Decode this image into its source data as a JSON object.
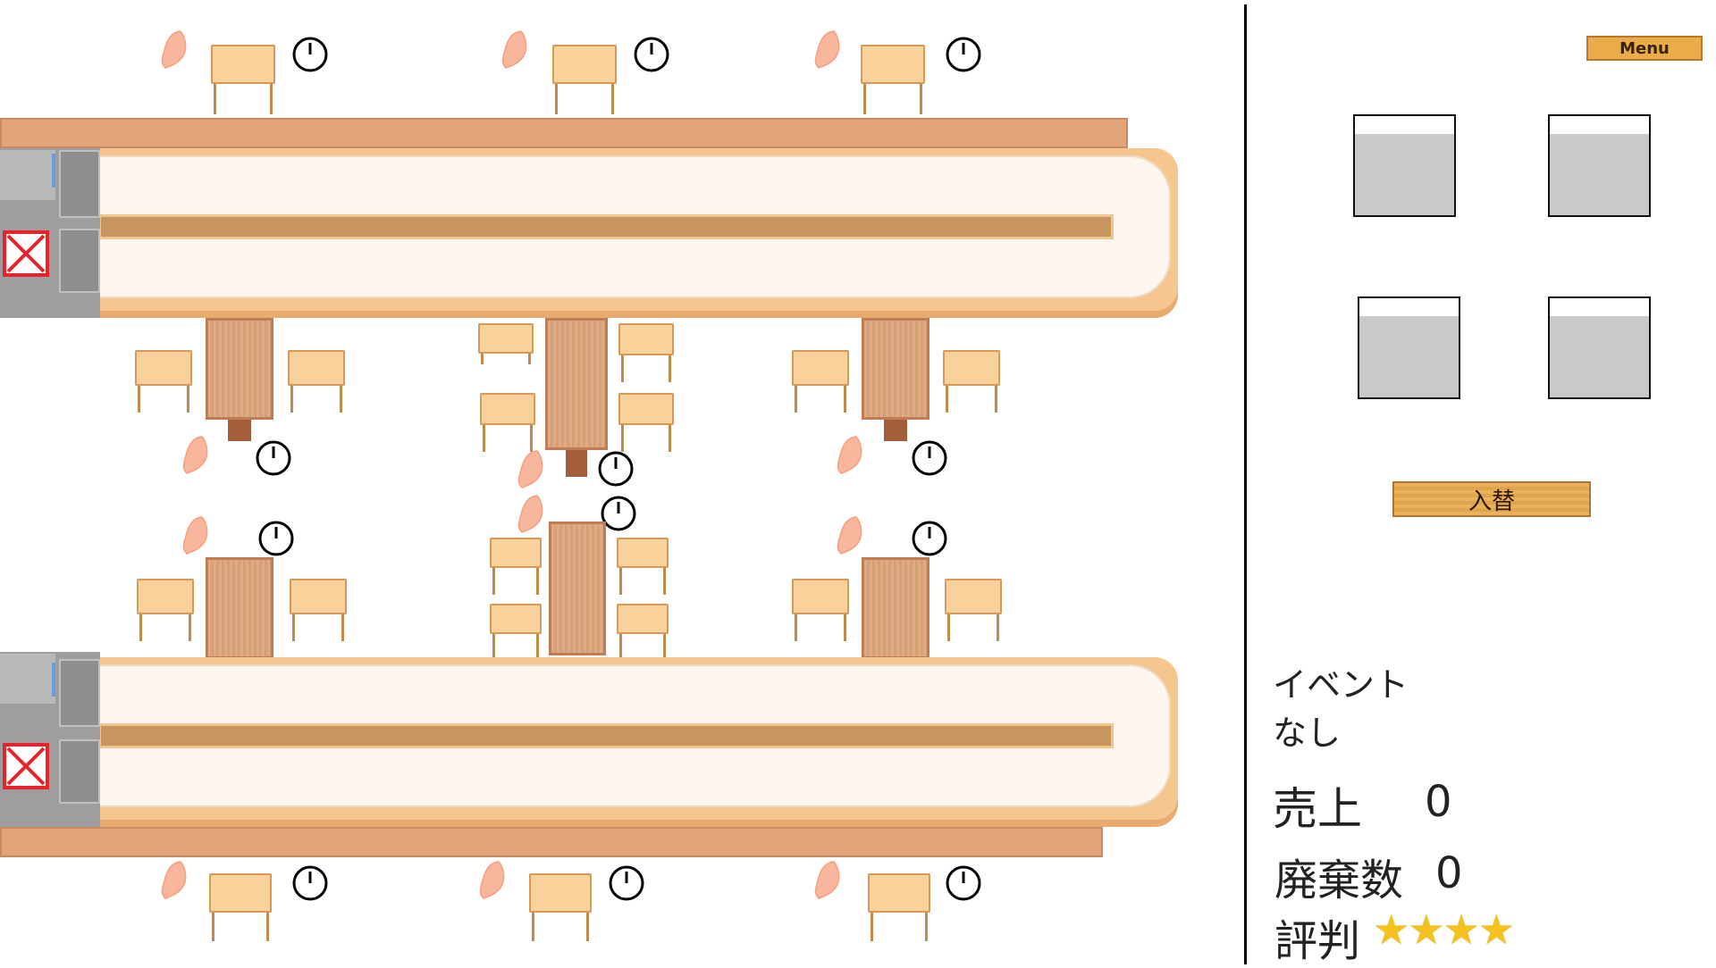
{
  "menu_label": "Menu",
  "swap_label": "入替",
  "event": {
    "label": "イベント",
    "value": "なし"
  },
  "stats": {
    "sales_label": "売上",
    "sales_value": "0",
    "waste_label": "廃棄数",
    "waste_value": "0",
    "reputation_label": "評判",
    "reputation_stars": "★★★★",
    "reputation_star_count": 4
  },
  "inventory_slots": 4,
  "colors": {
    "belt": "#f6c68f",
    "counter": "#e2a57a",
    "table": "#dba57c",
    "chair": "#f8d19b",
    "panel_button": "#e9ac48",
    "star": "#f3c21f",
    "x_marker": "#e8232c"
  },
  "icons": [
    "seat-icon",
    "clock-icon",
    "disabled-x-icon",
    "star-icon"
  ]
}
